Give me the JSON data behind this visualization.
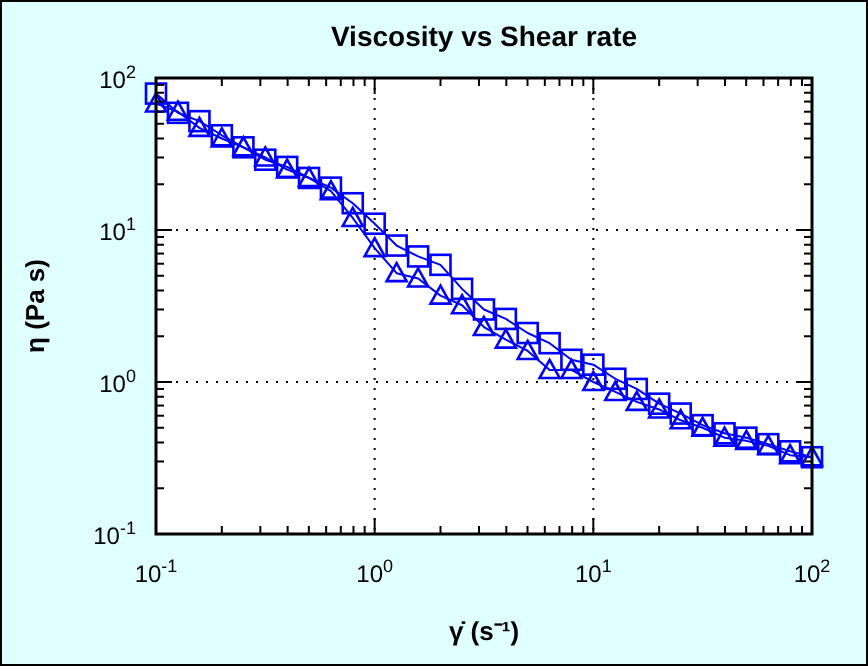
{
  "chart_data": {
    "type": "line",
    "title": "Viscosity vs Shear rate",
    "xlabel": "γ̇ (s⁻¹)",
    "ylabel": "η (Pa s)",
    "log": "xy",
    "grid": true,
    "line_style": "solid",
    "x": [
      0.1,
      0.126,
      0.158,
      0.2,
      0.251,
      0.316,
      0.398,
      0.501,
      0.631,
      0.794,
      1,
      1.26,
      1.58,
      2,
      2.51,
      3.16,
      3.98,
      5.01,
      6.31,
      7.94,
      10,
      12.6,
      15.8,
      20,
      25.1,
      31.6,
      39.8,
      50.1,
      63.1,
      79.4,
      100
    ],
    "xlim": [
      0.1,
      100
    ],
    "ylim": [
      0.1,
      100
    ],
    "xticks": [
      {
        "value": 0.1,
        "label": "10$^{-1}$"
      },
      {
        "value": 0.2,
        "label": null
      },
      {
        "value": 0.3,
        "label": null
      },
      {
        "value": 0.4,
        "label": null
      },
      {
        "value": 0.5,
        "label": null
      },
      {
        "value": 0.6,
        "label": null
      },
      {
        "value": 0.7,
        "label": null
      },
      {
        "value": 0.8,
        "label": null
      },
      {
        "value": 0.9,
        "label": null
      },
      {
        "value": 1,
        "label": "10$^{0}$"
      },
      {
        "value": 2,
        "label": null
      },
      {
        "value": 3,
        "label": null
      },
      {
        "value": 4,
        "label": null
      },
      {
        "value": 5,
        "label": null
      },
      {
        "value": 6,
        "label": null
      },
      {
        "value": 7,
        "label": null
      },
      {
        "value": 8,
        "label": null
      },
      {
        "value": 9,
        "label": null
      },
      {
        "value": 10,
        "label": "10$^{1}$"
      },
      {
        "value": 20,
        "label": null
      },
      {
        "value": 30,
        "label": null
      },
      {
        "value": 40,
        "label": null
      },
      {
        "value": 50,
        "label": null
      },
      {
        "value": 60,
        "label": null
      },
      {
        "value": 70,
        "label": null
      },
      {
        "value": 80,
        "label": null
      },
      {
        "value": 90,
        "label": null
      },
      {
        "value": 100,
        "label": "10$^{2}$"
      }
    ],
    "yticks": [
      {
        "value": 0.1,
        "label": "10$^{-1}$"
      },
      {
        "value": 0.2,
        "label": null
      },
      {
        "value": 0.3,
        "label": null
      },
      {
        "value": 0.4,
        "label": null
      },
      {
        "value": 0.5,
        "label": null
      },
      {
        "value": 0.6,
        "label": null
      },
      {
        "value": 0.7,
        "label": null
      },
      {
        "value": 0.8,
        "label": null
      },
      {
        "value": 0.9,
        "label": null
      },
      {
        "value": 1,
        "label": "10$^{0}$"
      },
      {
        "value": 2,
        "label": null
      },
      {
        "value": 3,
        "label": null
      },
      {
        "value": 4,
        "label": null
      },
      {
        "value": 5,
        "label": null
      },
      {
        "value": 6,
        "label": null
      },
      {
        "value": 7,
        "label": null
      },
      {
        "value": 8,
        "label": null
      },
      {
        "value": 9,
        "label": null
      },
      {
        "value": 10,
        "label": "10$^{1}$"
      },
      {
        "value": 20,
        "label": null
      },
      {
        "value": 30,
        "label": null
      },
      {
        "value": 40,
        "label": null
      },
      {
        "value": 50,
        "label": null
      },
      {
        "value": 60,
        "label": null
      },
      {
        "value": 70,
        "label": null
      },
      {
        "value": 80,
        "label": null
      },
      {
        "value": 90,
        "label": null
      },
      {
        "value": 100,
        "label": "10$^{2}$"
      }
    ],
    "series": [
      {
        "color": "#0000ff",
        "marker": "square",
        "values": [
          79,
          59,
          52,
          42,
          35,
          29,
          26,
          22,
          19,
          15,
          11,
          7.9,
          6.7,
          5.9,
          4.1,
          3.0,
          2.6,
          2.1,
          1.8,
          1.4,
          1.3,
          1.05,
          0.9,
          0.72,
          0.62,
          0.52,
          0.46,
          0.43,
          0.39,
          0.35,
          0.32
        ]
      },
      {
        "color": "#0000ff",
        "marker": "triangle",
        "values": [
          68,
          60,
          47,
          40,
          35,
          30,
          25,
          22,
          18,
          12,
          7.6,
          5.2,
          4.8,
          3.7,
          3.2,
          2.3,
          1.9,
          1.6,
          1.2,
          1.2,
          1.0,
          0.86,
          0.74,
          0.66,
          0.56,
          0.5,
          0.43,
          0.41,
          0.38,
          0.33,
          0.32
        ]
      }
    ]
  }
}
